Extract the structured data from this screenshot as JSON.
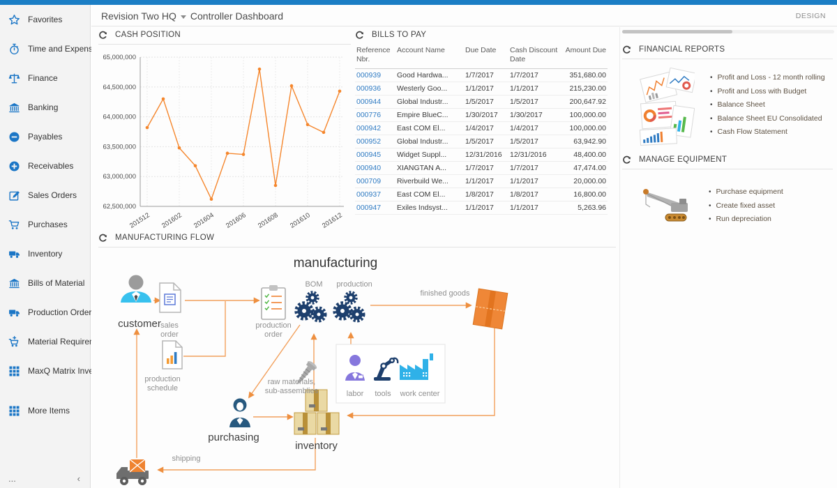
{
  "app": {
    "design_label": "DESIGN"
  },
  "header": {
    "company": "Revision Two HQ",
    "page_title": "Controller Dashboard"
  },
  "sidebar": {
    "items": [
      {
        "icon": "star-icon",
        "label": "Favorites"
      },
      {
        "icon": "stopwatch-icon",
        "label": "Time and Expenses"
      },
      {
        "icon": "scales-icon",
        "label": "Finance"
      },
      {
        "icon": "bank-icon",
        "label": "Banking"
      },
      {
        "icon": "minus-circle-icon",
        "label": "Payables"
      },
      {
        "icon": "plus-circle-icon",
        "label": "Receivables"
      },
      {
        "icon": "edit-icon",
        "label": "Sales Orders"
      },
      {
        "icon": "cart-icon",
        "label": "Purchases"
      },
      {
        "icon": "truck-icon",
        "label": "Inventory"
      },
      {
        "icon": "bank-icon",
        "label": "Bills of Material"
      },
      {
        "icon": "truck-icon",
        "label": "Production Orders"
      },
      {
        "icon": "cart-plus-icon",
        "label": "Material Requirem..."
      },
      {
        "icon": "grid-icon",
        "label": "MaxQ Matrix Invent..."
      },
      {
        "icon": "grid-icon",
        "label": "More Items",
        "gap": true
      }
    ],
    "footer": {
      "more": "...",
      "collapse": "‹"
    }
  },
  "panels": {
    "cash_position": {
      "title": "CASH POSITION"
    },
    "bills_to_pay": {
      "title": "BILLS TO PAY",
      "columns": [
        "Reference Nbr.",
        "Account Name",
        "Due Date",
        "Cash Discount Date",
        "Amount Due"
      ],
      "rows": [
        {
          "ref": "000939",
          "account": "Good Hardwa...",
          "due": "1/7/2017",
          "discount": "1/7/2017",
          "amount": "351,680.00"
        },
        {
          "ref": "000936",
          "account": "Westerly Goo...",
          "due": "1/1/2017",
          "discount": "1/1/2017",
          "amount": "215,230.00"
        },
        {
          "ref": "000944",
          "account": "Global Industr...",
          "due": "1/5/2017",
          "discount": "1/5/2017",
          "amount": "200,647.92"
        },
        {
          "ref": "000776",
          "account": "Empire BlueC...",
          "due": "1/30/2017",
          "discount": "1/30/2017",
          "amount": "100,000.00"
        },
        {
          "ref": "000942",
          "account": "East COM El...",
          "due": "1/4/2017",
          "discount": "1/4/2017",
          "amount": "100,000.00"
        },
        {
          "ref": "000952",
          "account": "Global Industr...",
          "due": "1/5/2017",
          "discount": "1/5/2017",
          "amount": "63,942.90"
        },
        {
          "ref": "000945",
          "account": "Widget Suppl...",
          "due": "12/31/2016",
          "discount": "12/31/2016",
          "amount": "48,400.00"
        },
        {
          "ref": "000940",
          "account": "XIANGTAN A...",
          "due": "1/7/2017",
          "discount": "1/7/2017",
          "amount": "47,474.00"
        },
        {
          "ref": "000709",
          "account": "Riverbuild We...",
          "due": "1/1/2017",
          "discount": "1/1/2017",
          "amount": "20,000.00"
        },
        {
          "ref": "000937",
          "account": "East COM El...",
          "due": "1/8/2017",
          "discount": "1/8/2017",
          "amount": "16,800.00"
        },
        {
          "ref": "000947",
          "account": "Exiles Indsyst...",
          "due": "1/1/2017",
          "discount": "1/1/2017",
          "amount": "5,263.96"
        }
      ]
    },
    "financial_reports": {
      "title": "FINANCIAL REPORTS",
      "links": [
        "Profit and Loss - 12 month rolling",
        "Profit and Loss with Budget",
        "Balance Sheet",
        "Balance Sheet EU Consolidated",
        "Cash Flow Statement"
      ]
    },
    "manage_equipment": {
      "title": "MANAGE EQUIPMENT",
      "links": [
        "Purchase equipment",
        "Create fixed asset",
        "Run depreciation"
      ]
    },
    "manufacturing_flow": {
      "title": "MANUFACTURING FLOW",
      "labels": {
        "manufacturing": "manufacturing",
        "bom": "BOM",
        "production": "production",
        "customer": "customer",
        "sales_order": "sales order",
        "production_schedule": "production schedule",
        "production_order": "production order",
        "finished_goods": "finished goods",
        "raw_materials": "raw materials, sub-assemblies",
        "labor": "labor",
        "tools": "tools",
        "work_center": "work center",
        "purchasing": "purchasing",
        "inventory": "inventory",
        "shipping": "shipping"
      }
    }
  },
  "chart_data": {
    "type": "line",
    "title": "CASH POSITION",
    "x": [
      "201512",
      "201601",
      "201602",
      "201603",
      "201604",
      "201605",
      "201606",
      "201607",
      "201608",
      "201609",
      "201610",
      "201611",
      "201612"
    ],
    "values": [
      63820000,
      64300000,
      63480000,
      63180000,
      62620000,
      63390000,
      63370000,
      64800000,
      62850000,
      64520000,
      63870000,
      63740000,
      64430000
    ],
    "xtick_labels": [
      "201512",
      "201602",
      "201604",
      "201606",
      "201608",
      "201610",
      "201612"
    ],
    "yticks": [
      62500000,
      63000000,
      63500000,
      64000000,
      64500000,
      65000000
    ],
    "ylim": [
      62500000,
      65000000
    ],
    "xlabel": "",
    "ylabel": "",
    "grid": true,
    "legend": "none",
    "line_color": "#f5862c"
  }
}
